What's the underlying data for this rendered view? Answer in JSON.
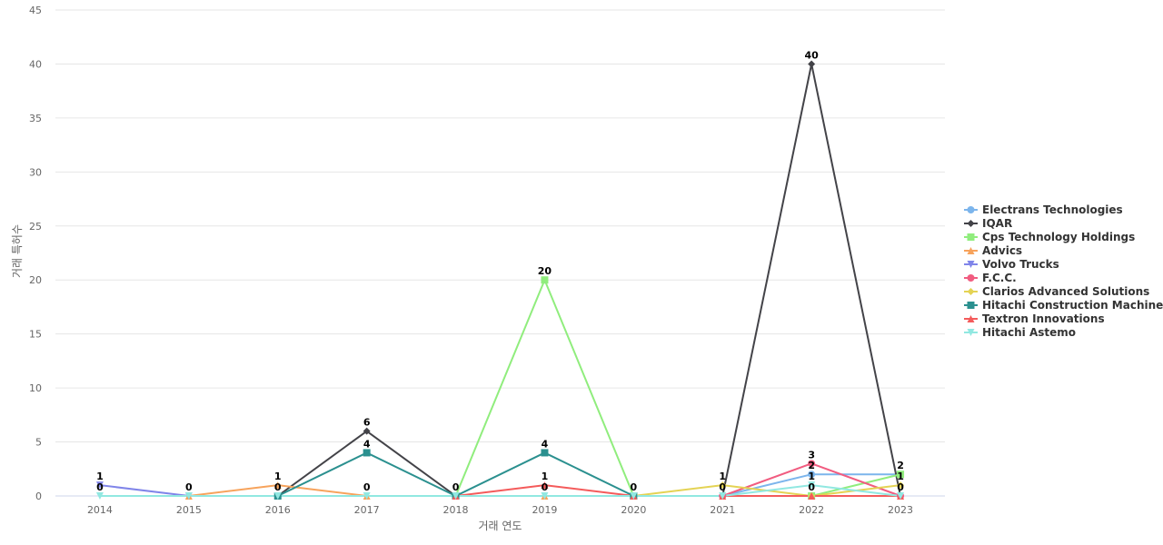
{
  "chart_data": {
    "type": "line",
    "title": "",
    "xlabel": "거래 연도",
    "ylabel": "거래 특허수",
    "ylim": [
      0,
      45
    ],
    "yticks": [
      0,
      5,
      10,
      15,
      20,
      25,
      30,
      35,
      40,
      45
    ],
    "grid": true,
    "legend_position": "right",
    "x": [
      "2014",
      "2015",
      "2016",
      "2017",
      "2018",
      "2019",
      "2020",
      "2021",
      "2022",
      "2023"
    ],
    "series": [
      {
        "name": "Electrans Technologies",
        "color": "#7cb5ec",
        "marker": "circle",
        "points": [
          {
            "x": "2021",
            "y": 0
          },
          {
            "x": "2022",
            "y": 2
          },
          {
            "x": "2023",
            "y": 2
          }
        ]
      },
      {
        "name": "IQAR",
        "color": "#434348",
        "marker": "diamond",
        "points": [
          {
            "x": "2016",
            "y": 0
          },
          {
            "x": "2017",
            "y": 6
          },
          {
            "x": "2018",
            "y": 0
          },
          {
            "x": "2021",
            "y": 0
          },
          {
            "x": "2022",
            "y": 40
          },
          {
            "x": "2023",
            "y": 0
          }
        ]
      },
      {
        "name": "Cps Technology Holdings",
        "color": "#90ed7d",
        "marker": "square",
        "points": [
          {
            "x": "2018",
            "y": 0
          },
          {
            "x": "2019",
            "y": 20
          },
          {
            "x": "2020",
            "y": 0
          },
          {
            "x": "2022",
            "y": 0
          },
          {
            "x": "2023",
            "y": 2
          }
        ]
      },
      {
        "name": "Advics",
        "color": "#f7a35c",
        "marker": "triangle",
        "points": [
          {
            "x": "2015",
            "y": 0
          },
          {
            "x": "2016",
            "y": 1
          },
          {
            "x": "2017",
            "y": 0
          },
          {
            "x": "2018",
            "y": 0
          },
          {
            "x": "2019",
            "y": 0
          },
          {
            "x": "2020",
            "y": 0
          }
        ]
      },
      {
        "name": "Volvo Trucks",
        "color": "#8085e9",
        "marker": "triangle-down",
        "points": [
          {
            "x": "2014",
            "y": 1
          },
          {
            "x": "2015",
            "y": 0
          }
        ]
      },
      {
        "name": "F.C.C.",
        "color": "#f15c80",
        "marker": "circle",
        "points": [
          {
            "x": "2021",
            "y": 0
          },
          {
            "x": "2022",
            "y": 3
          },
          {
            "x": "2023",
            "y": 0
          }
        ]
      },
      {
        "name": "Clarios Advanced Solutions",
        "color": "#e4d354",
        "marker": "diamond",
        "points": [
          {
            "x": "2020",
            "y": 0
          },
          {
            "x": "2021",
            "y": 1
          },
          {
            "x": "2022",
            "y": 0
          },
          {
            "x": "2023",
            "y": 1
          }
        ]
      },
      {
        "name": "Hitachi Construction Machinery",
        "color": "#2b908f",
        "marker": "square",
        "points": [
          {
            "x": "2016",
            "y": 0
          },
          {
            "x": "2017",
            "y": 4
          },
          {
            "x": "2018",
            "y": 0
          },
          {
            "x": "2019",
            "y": 4
          },
          {
            "x": "2020",
            "y": 0
          }
        ]
      },
      {
        "name": "Textron Innovations",
        "color": "#f45b5b",
        "marker": "triangle",
        "points": [
          {
            "x": "2018",
            "y": 0
          },
          {
            "x": "2019",
            "y": 1
          },
          {
            "x": "2020",
            "y": 0
          },
          {
            "x": "2021",
            "y": 0
          },
          {
            "x": "2022",
            "y": 0
          },
          {
            "x": "2023",
            "y": 0
          }
        ]
      },
      {
        "name": "Hitachi Astemo",
        "color": "#91e8e1",
        "marker": "triangle-down",
        "points": [
          {
            "x": "2014",
            "y": 0
          },
          {
            "x": "2015",
            "y": 0
          },
          {
            "x": "2016",
            "y": 0
          },
          {
            "x": "2017",
            "y": 0
          },
          {
            "x": "2018",
            "y": 0
          },
          {
            "x": "2019",
            "y": 0
          },
          {
            "x": "2020",
            "y": 0
          },
          {
            "x": "2021",
            "y": 0
          },
          {
            "x": "2022",
            "y": 1
          },
          {
            "x": "2023",
            "y": 0
          }
        ]
      }
    ],
    "data_labels": [
      {
        "x": "2014",
        "text": "1",
        "y": 1
      },
      {
        "x": "2014",
        "text": "0",
        "y": 0
      },
      {
        "x": "2015",
        "text": "0",
        "y": 0
      },
      {
        "x": "2016",
        "text": "1",
        "y": 1
      },
      {
        "x": "2016",
        "text": "0",
        "y": 0
      },
      {
        "x": "2017",
        "text": "6",
        "y": 6
      },
      {
        "x": "2017",
        "text": "4",
        "y": 4
      },
      {
        "x": "2017",
        "text": "0",
        "y": 0
      },
      {
        "x": "2018",
        "text": "0",
        "y": 0
      },
      {
        "x": "2019",
        "text": "20",
        "y": 20
      },
      {
        "x": "2019",
        "text": "4",
        "y": 4
      },
      {
        "x": "2019",
        "text": "1",
        "y": 1
      },
      {
        "x": "2019",
        "text": "0",
        "y": 0
      },
      {
        "x": "2020",
        "text": "0",
        "y": 0
      },
      {
        "x": "2021",
        "text": "1",
        "y": 1
      },
      {
        "x": "2021",
        "text": "0",
        "y": 0
      },
      {
        "x": "2022",
        "text": "40",
        "y": 40
      },
      {
        "x": "2022",
        "text": "3",
        "y": 3
      },
      {
        "x": "2022",
        "text": "2",
        "y": 2
      },
      {
        "x": "2022",
        "text": "1",
        "y": 1
      },
      {
        "x": "2022",
        "text": "0",
        "y": 0
      },
      {
        "x": "2023",
        "text": "2",
        "y": 2
      },
      {
        "x": "2023",
        "text": "1",
        "y": 1
      },
      {
        "x": "2023",
        "text": "0",
        "y": 0
      }
    ]
  }
}
